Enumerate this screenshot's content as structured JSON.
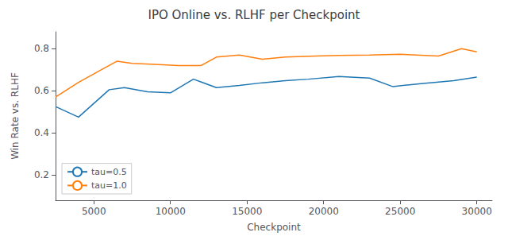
{
  "chart_data": {
    "type": "line",
    "title": "IPO Online vs. RLHF per Checkpoint",
    "xlabel": "Checkpoint",
    "ylabel": "Win Rate vs. RLHF",
    "xlim": [
      2500,
      31000
    ],
    "ylim": [
      0.08,
      0.88
    ],
    "xticks": [
      5000,
      10000,
      15000,
      20000,
      25000,
      30000
    ],
    "yticks": [
      0.2,
      0.4,
      0.6,
      0.8
    ],
    "series": [
      {
        "name": "tau=0.5",
        "color": "#1f77b4",
        "x": [
          2500,
          4000,
          6000,
          7000,
          8500,
          10000,
          11500,
          13000,
          14500,
          16000,
          17500,
          19000,
          21000,
          23000,
          24500,
          26500,
          28500,
          30000
        ],
        "values": [
          0.525,
          0.475,
          0.605,
          0.615,
          0.595,
          0.59,
          0.655,
          0.615,
          0.625,
          0.638,
          0.648,
          0.655,
          0.668,
          0.66,
          0.62,
          0.635,
          0.648,
          0.665
        ]
      },
      {
        "name": "tau=1.0",
        "color": "#ff7f0e",
        "x": [
          2500,
          4000,
          5500,
          6500,
          7500,
          9000,
          10500,
          12000,
          13000,
          14500,
          16000,
          17500,
          19500,
          21000,
          23000,
          25000,
          27500,
          29000,
          30000
        ],
        "values": [
          0.57,
          0.64,
          0.7,
          0.74,
          0.73,
          0.725,
          0.72,
          0.72,
          0.76,
          0.77,
          0.75,
          0.76,
          0.765,
          0.768,
          0.77,
          0.773,
          0.765,
          0.8,
          0.785
        ]
      }
    ],
    "legend": "lower left",
    "grid": false
  }
}
